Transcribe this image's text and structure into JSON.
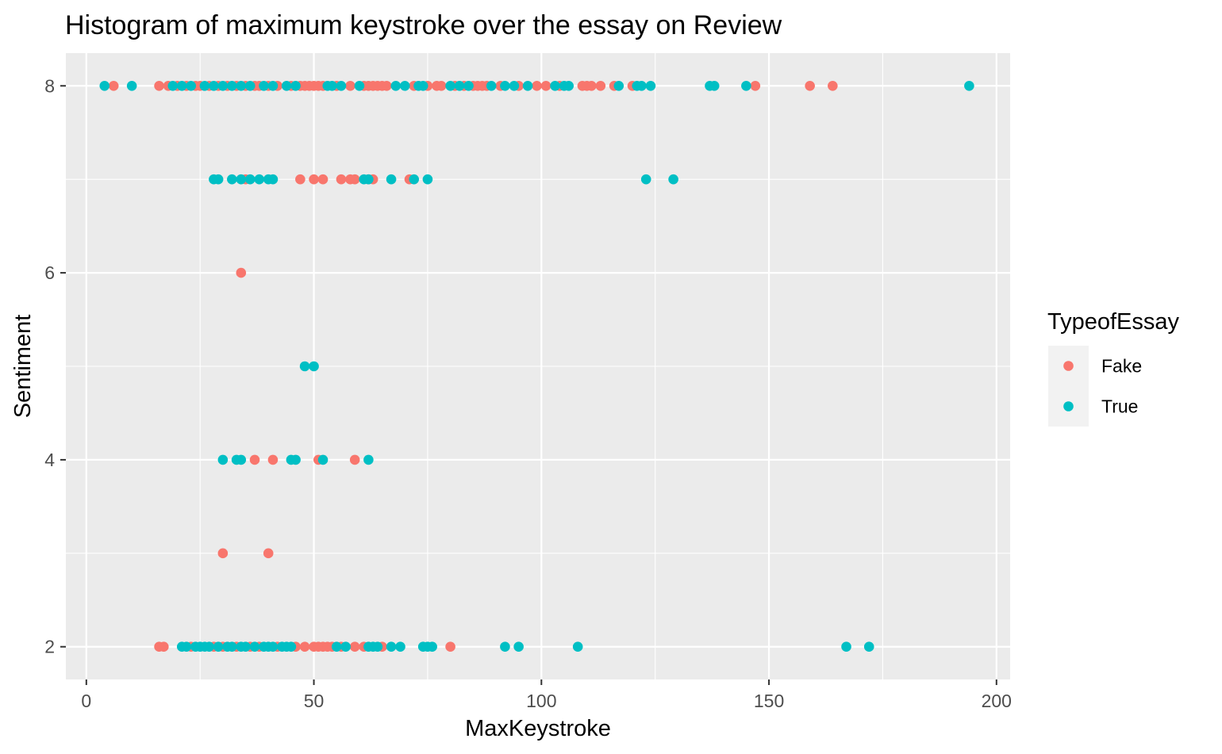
{
  "chart_data": {
    "type": "scatter",
    "title": "Histogram of maximum keystroke over the essay on Review",
    "xlabel": "MaxKeystroke",
    "ylabel": "Sentiment",
    "xlim": [
      -4.5,
      203
    ],
    "ylim": [
      1.65,
      8.35
    ],
    "x_ticks": [
      0,
      50,
      100,
      150,
      200
    ],
    "y_ticks": [
      2,
      4,
      6,
      8
    ],
    "grid": true,
    "legend": {
      "title": "TypeofEssay",
      "placement": "right",
      "entries": [
        {
          "label": "Fake",
          "color": "#F8766D"
        },
        {
          "label": "True",
          "color": "#00BFC4"
        }
      ]
    },
    "colors": {
      "panel": "#EBEBEB",
      "grid": "#FFFFFF",
      "tick": "#333333",
      "legend_key": "#F2F2F2"
    },
    "series": [
      {
        "name": "Fake",
        "color": "#F8766D",
        "points": [
          [
            6,
            8
          ],
          [
            16,
            8
          ],
          [
            18,
            8
          ],
          [
            20,
            8
          ],
          [
            22,
            8
          ],
          [
            24,
            8
          ],
          [
            25,
            8
          ],
          [
            27,
            8
          ],
          [
            29,
            8
          ],
          [
            31,
            8
          ],
          [
            33,
            8
          ],
          [
            35,
            8
          ],
          [
            37,
            8
          ],
          [
            38,
            8
          ],
          [
            40,
            8
          ],
          [
            42,
            8
          ],
          [
            45,
            8
          ],
          [
            47,
            8
          ],
          [
            48,
            8
          ],
          [
            49,
            8
          ],
          [
            50,
            8
          ],
          [
            51,
            8
          ],
          [
            52,
            8
          ],
          [
            55,
            8
          ],
          [
            58,
            8
          ],
          [
            61,
            8
          ],
          [
            62,
            8
          ],
          [
            63,
            8
          ],
          [
            64,
            8
          ],
          [
            65,
            8
          ],
          [
            66,
            8
          ],
          [
            72,
            8
          ],
          [
            75,
            8
          ],
          [
            77,
            8
          ],
          [
            78,
            8
          ],
          [
            81,
            8
          ],
          [
            83,
            8
          ],
          [
            85,
            8
          ],
          [
            86,
            8
          ],
          [
            87,
            8
          ],
          [
            88,
            8
          ],
          [
            91,
            8
          ],
          [
            95,
            8
          ],
          [
            99,
            8
          ],
          [
            101,
            8
          ],
          [
            104,
            8
          ],
          [
            109,
            8
          ],
          [
            110,
            8
          ],
          [
            111,
            8
          ],
          [
            113,
            8
          ],
          [
            116,
            8
          ],
          [
            120,
            8
          ],
          [
            147,
            8
          ],
          [
            159,
            8
          ],
          [
            164,
            8
          ],
          [
            35,
            7
          ],
          [
            47,
            7
          ],
          [
            50,
            7
          ],
          [
            52,
            7
          ],
          [
            56,
            7
          ],
          [
            58,
            7
          ],
          [
            59,
            7
          ],
          [
            62,
            7
          ],
          [
            63,
            7
          ],
          [
            71,
            7
          ],
          [
            34,
            6
          ],
          [
            37,
            4
          ],
          [
            41,
            4
          ],
          [
            51,
            4
          ],
          [
            59,
            4
          ],
          [
            30,
            3
          ],
          [
            40,
            3
          ],
          [
            16,
            2
          ],
          [
            17,
            2
          ],
          [
            23,
            2
          ],
          [
            28,
            2
          ],
          [
            30,
            2
          ],
          [
            33,
            2
          ],
          [
            36,
            2
          ],
          [
            38,
            2
          ],
          [
            42,
            2
          ],
          [
            46,
            2
          ],
          [
            48,
            2
          ],
          [
            50,
            2
          ],
          [
            51,
            2
          ],
          [
            52,
            2
          ],
          [
            53,
            2
          ],
          [
            54,
            2
          ],
          [
            56,
            2
          ],
          [
            59,
            2
          ],
          [
            61,
            2
          ],
          [
            65,
            2
          ],
          [
            80,
            2
          ]
        ]
      },
      {
        "name": "True",
        "color": "#00BFC4",
        "points": [
          [
            4,
            8
          ],
          [
            10,
            8
          ],
          [
            19,
            8
          ],
          [
            21,
            8
          ],
          [
            23,
            8
          ],
          [
            26,
            8
          ],
          [
            28,
            8
          ],
          [
            30,
            8
          ],
          [
            32,
            8
          ],
          [
            34,
            8
          ],
          [
            36,
            8
          ],
          [
            39,
            8
          ],
          [
            41,
            8
          ],
          [
            44,
            8
          ],
          [
            46,
            8
          ],
          [
            53,
            8
          ],
          [
            54,
            8
          ],
          [
            56,
            8
          ],
          [
            60,
            8
          ],
          [
            68,
            8
          ],
          [
            70,
            8
          ],
          [
            73,
            8
          ],
          [
            74,
            8
          ],
          [
            80,
            8
          ],
          [
            82,
            8
          ],
          [
            84,
            8
          ],
          [
            89,
            8
          ],
          [
            92,
            8
          ],
          [
            94,
            8
          ],
          [
            97,
            8
          ],
          [
            103,
            8
          ],
          [
            105,
            8
          ],
          [
            106,
            8
          ],
          [
            117,
            8
          ],
          [
            121,
            8
          ],
          [
            122,
            8
          ],
          [
            124,
            8
          ],
          [
            137,
            8
          ],
          [
            138,
            8
          ],
          [
            145,
            8
          ],
          [
            194,
            8
          ],
          [
            28,
            7
          ],
          [
            29,
            7
          ],
          [
            32,
            7
          ],
          [
            34,
            7
          ],
          [
            36,
            7
          ],
          [
            38,
            7
          ],
          [
            40,
            7
          ],
          [
            41,
            7
          ],
          [
            61,
            7
          ],
          [
            62,
            7
          ],
          [
            67,
            7
          ],
          [
            72,
            7
          ],
          [
            75,
            7
          ],
          [
            123,
            7
          ],
          [
            129,
            7
          ],
          [
            48,
            5
          ],
          [
            50,
            5
          ],
          [
            30,
            4
          ],
          [
            33,
            4
          ],
          [
            34,
            4
          ],
          [
            45,
            4
          ],
          [
            46,
            4
          ],
          [
            52,
            4
          ],
          [
            62,
            4
          ],
          [
            21,
            2
          ],
          [
            22,
            2
          ],
          [
            24,
            2
          ],
          [
            25,
            2
          ],
          [
            26,
            2
          ],
          [
            27,
            2
          ],
          [
            29,
            2
          ],
          [
            31,
            2
          ],
          [
            32,
            2
          ],
          [
            34,
            2
          ],
          [
            35,
            2
          ],
          [
            37,
            2
          ],
          [
            39,
            2
          ],
          [
            40,
            2
          ],
          [
            41,
            2
          ],
          [
            43,
            2
          ],
          [
            44,
            2
          ],
          [
            45,
            2
          ],
          [
            55,
            2
          ],
          [
            57,
            2
          ],
          [
            62,
            2
          ],
          [
            63,
            2
          ],
          [
            64,
            2
          ],
          [
            67,
            2
          ],
          [
            69,
            2
          ],
          [
            74,
            2
          ],
          [
            75,
            2
          ],
          [
            76,
            2
          ],
          [
            92,
            2
          ],
          [
            95,
            2
          ],
          [
            108,
            2
          ],
          [
            167,
            2
          ],
          [
            172,
            2
          ]
        ]
      }
    ]
  }
}
